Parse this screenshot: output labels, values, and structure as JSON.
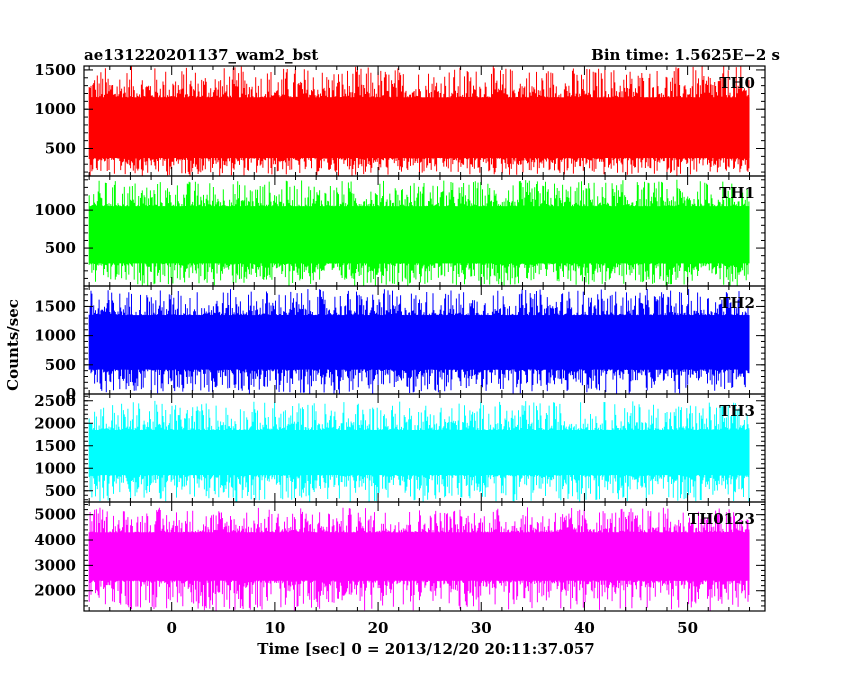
{
  "header": {
    "title": "ae131220201137_wam2_bst",
    "bin_time": "Bin time: 1.5625E−2 s"
  },
  "axes": {
    "xlabel": "Time [sec] 0 = 2013/12/20 20:11:37.057",
    "ylabel": "Counts/sec"
  },
  "chart_data": {
    "type": "line",
    "xlim": [
      -8.5,
      57.5
    ],
    "x_ticks": [
      0,
      10,
      20,
      30,
      40,
      50
    ],
    "x_range_data": [
      -8,
      56
    ],
    "bin_time": 0.015625,
    "grid": false,
    "panels": [
      {
        "name": "TH0",
        "color": "#ff0000",
        "ylim": [
          150,
          1550
        ],
        "y_ticks": [
          500,
          1000,
          1500
        ],
        "typical_min": 380,
        "typical_max": 1150,
        "spike_max": 1550,
        "baseline": 700
      },
      {
        "name": "TH1",
        "color": "#00ff00",
        "ylim": [
          0,
          1450
        ],
        "y_ticks": [
          500,
          1000
        ],
        "typical_min": 300,
        "typical_max": 1050,
        "spike_max": 1400,
        "baseline": 640
      },
      {
        "name": "TH2",
        "color": "#0000ff",
        "ylim": [
          0,
          1850
        ],
        "y_ticks": [
          0,
          500,
          1000,
          1500
        ],
        "typical_min": 420,
        "typical_max": 1350,
        "spike_max": 1800,
        "baseline": 800
      },
      {
        "name": "TH3",
        "color": "#00ffff",
        "ylim": [
          250,
          2650
        ],
        "y_ticks": [
          500,
          1000,
          1500,
          2000,
          2500
        ],
        "typical_min": 850,
        "typical_max": 1850,
        "spike_max": 2500,
        "baseline": 1250
      },
      {
        "name": "TH0123",
        "color": "#ff00ff",
        "ylim": [
          1200,
          5500
        ],
        "y_ticks": [
          2000,
          3000,
          4000,
          5000
        ],
        "typical_min": 2400,
        "typical_max": 4300,
        "spike_max": 5300,
        "baseline": 3200
      }
    ]
  }
}
